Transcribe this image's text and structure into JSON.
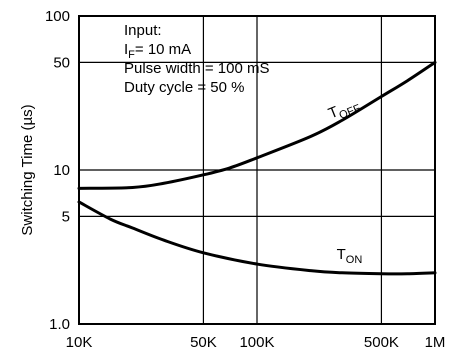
{
  "chart_data": {
    "type": "line",
    "title": "",
    "xlabel": "",
    "ylabel": "Switching Time (µs)",
    "x_scale": "log",
    "y_scale": "log",
    "xlim": [
      10000,
      1000000
    ],
    "ylim": [
      1,
      100
    ],
    "grid": true,
    "x_ticks": [
      {
        "value": 10000,
        "label": "10K"
      },
      {
        "value": 50000,
        "label": "50K"
      },
      {
        "value": 100000,
        "label": "100K"
      },
      {
        "value": 500000,
        "label": "500K"
      },
      {
        "value": 1000000,
        "label": "1M"
      }
    ],
    "y_ticks": [
      {
        "value": 1,
        "label": "1.0"
      },
      {
        "value": 5,
        "label": "5"
      },
      {
        "value": 10,
        "label": "10"
      },
      {
        "value": 50,
        "label": "50"
      },
      {
        "value": 100,
        "label": "100"
      }
    ],
    "annotation_lines": [
      {
        "text": "Input:"
      },
      {
        "text": "I",
        "sub": "F",
        "rest": "= 10 mA"
      },
      {
        "text": "Pulse width = 100 mS"
      },
      {
        "text": "Duty cycle = 50 %"
      }
    ],
    "series": [
      {
        "name": "T",
        "sub": "OFF",
        "x": [
          10000,
          20000,
          30000,
          50000,
          70000,
          100000,
          200000,
          300000,
          500000,
          700000,
          1000000
        ],
        "y": [
          7.6,
          7.7,
          8.2,
          9.3,
          10.3,
          12,
          16.5,
          21,
          30,
          38,
          50
        ]
      },
      {
        "name": "T",
        "sub": "ON",
        "x": [
          10000,
          15000,
          20000,
          30000,
          50000,
          100000,
          200000,
          300000,
          500000,
          700000,
          1000000
        ],
        "y": [
          6.2,
          4.8,
          4.2,
          3.5,
          2.9,
          2.45,
          2.22,
          2.15,
          2.12,
          2.12,
          2.15
        ]
      }
    ]
  }
}
